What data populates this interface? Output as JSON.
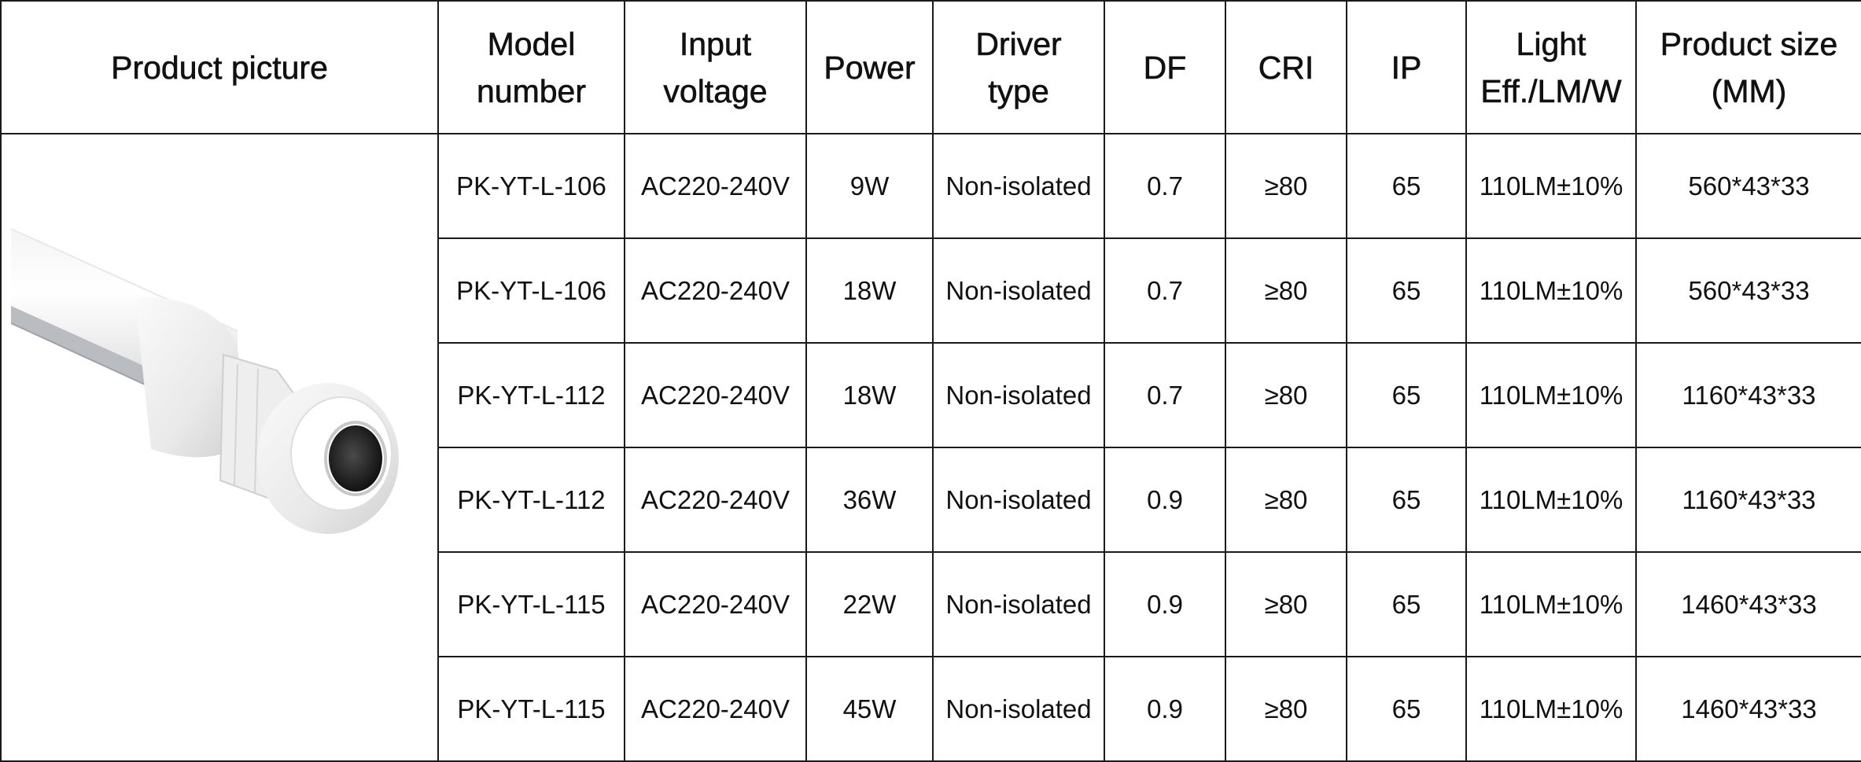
{
  "headers": [
    {
      "line1": "Product picture",
      "line2": ""
    },
    {
      "line1": "Model",
      "line2": "number"
    },
    {
      "line1": "Input",
      "line2": "voltage"
    },
    {
      "line1": "Power",
      "line2": ""
    },
    {
      "line1": "Driver",
      "line2": "type"
    },
    {
      "line1": "DF",
      "line2": ""
    },
    {
      "line1": "CRI",
      "line2": ""
    },
    {
      "line1": "IP",
      "line2": ""
    },
    {
      "line1": "Light",
      "line2": "Eff./LM/W"
    },
    {
      "line1": "Product size",
      "line2": "(MM)"
    }
  ],
  "product_image": {
    "subject": "white tube light fitting with cable gland end cap"
  },
  "rows": [
    {
      "model": "PK-YT-L-106",
      "voltage": "AC220-240V",
      "power": "9W",
      "driver": "Non-isolated",
      "df": "0.7",
      "cri": "≥80",
      "ip": "65",
      "efficacy": "110LM±10%",
      "size": "560*43*33"
    },
    {
      "model": "PK-YT-L-106",
      "voltage": "AC220-240V",
      "power": "18W",
      "driver": "Non-isolated",
      "df": "0.7",
      "cri": "≥80",
      "ip": "65",
      "efficacy": "110LM±10%",
      "size": "560*43*33"
    },
    {
      "model": "PK-YT-L-112",
      "voltage": "AC220-240V",
      "power": "18W",
      "driver": "Non-isolated",
      "df": "0.7",
      "cri": "≥80",
      "ip": "65",
      "efficacy": "110LM±10%",
      "size": "1160*43*33"
    },
    {
      "model": "PK-YT-L-112",
      "voltage": "AC220-240V",
      "power": "36W",
      "driver": "Non-isolated",
      "df": "0.9",
      "cri": "≥80",
      "ip": "65",
      "efficacy": "110LM±10%",
      "size": "1160*43*33"
    },
    {
      "model": "PK-YT-L-115",
      "voltage": "AC220-240V",
      "power": "22W",
      "driver": "Non-isolated",
      "df": "0.9",
      "cri": "≥80",
      "ip": "65",
      "efficacy": "110LM±10%",
      "size": "1460*43*33"
    },
    {
      "model": "PK-YT-L-115",
      "voltage": "AC220-240V",
      "power": "45W",
      "driver": "Non-isolated",
      "df": "0.9",
      "cri": "≥80",
      "ip": "65",
      "efficacy": "110LM±10%",
      "size": "1460*43*33"
    }
  ]
}
